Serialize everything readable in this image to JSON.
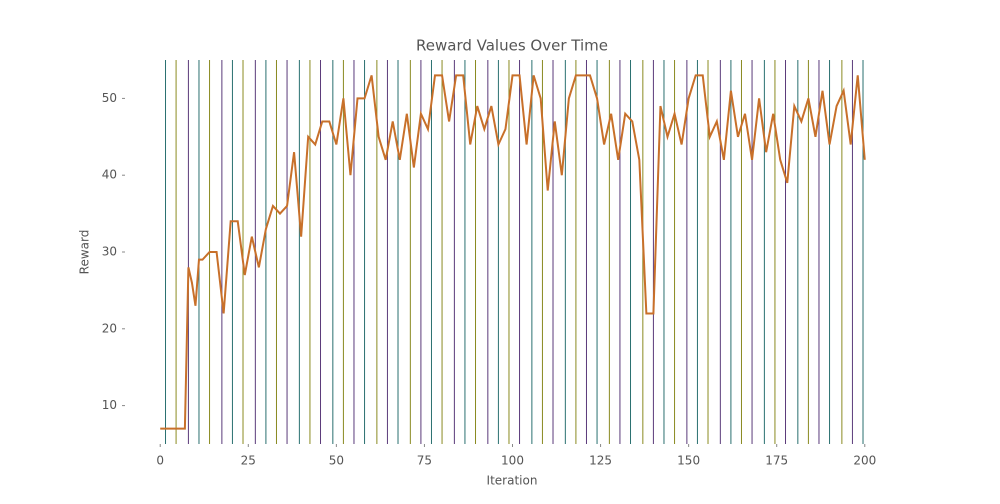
{
  "chart_data": {
    "type": "line",
    "title": "Reward Values Over Time",
    "x_label": "Iteration",
    "y_label": "Reward",
    "x": [
      0,
      2,
      4,
      6,
      7,
      8,
      9,
      10,
      11,
      12,
      14,
      16,
      18,
      20,
      22,
      24,
      26,
      28,
      30,
      32,
      34,
      36,
      38,
      40,
      42,
      44,
      46,
      48,
      50,
      52,
      54,
      56,
      58,
      60,
      62,
      64,
      66,
      68,
      70,
      72,
      74,
      76,
      78,
      80,
      82,
      84,
      86,
      88,
      90,
      92,
      94,
      96,
      98,
      100,
      102,
      104,
      106,
      108,
      110,
      112,
      114,
      116,
      118,
      120,
      122,
      124,
      126,
      128,
      130,
      132,
      134,
      136,
      138,
      140,
      142,
      144,
      146,
      148,
      150,
      152,
      154,
      156,
      158,
      160,
      162,
      164,
      166,
      168,
      170,
      172,
      174,
      176,
      178,
      180,
      182,
      184,
      186,
      188,
      190,
      192,
      194,
      196,
      198,
      200
    ],
    "series": [
      {
        "name": "Reward",
        "color": "#c8702a",
        "values": [
          7,
          7,
          7,
          7,
          7,
          28,
          26,
          23,
          29,
          29,
          30,
          30,
          22,
          34,
          34,
          27,
          32,
          28,
          33,
          36,
          35,
          36,
          43,
          32,
          45,
          44,
          47,
          47,
          44,
          50,
          40,
          50,
          50,
          53,
          45,
          42,
          47,
          42,
          48,
          41,
          48,
          46,
          53,
          53,
          47,
          53,
          53,
          44,
          49,
          46,
          49,
          44,
          46,
          53,
          53,
          44,
          53,
          50,
          38,
          47,
          40,
          50,
          53,
          53,
          53,
          50,
          44,
          48,
          42,
          48,
          47,
          42,
          22,
          22,
          49,
          45,
          48,
          44,
          50,
          53,
          53,
          45,
          47,
          42,
          51,
          45,
          48,
          42,
          50,
          43,
          48,
          42,
          39,
          49,
          47,
          50,
          45,
          51,
          44,
          49,
          51,
          44,
          53,
          42
        ]
      }
    ],
    "vlines": [
      1.5,
      4.5,
      8,
      11,
      14,
      17.5,
      20.5,
      23.5,
      27,
      30,
      33,
      36,
      39.5,
      42.5,
      45.5,
      49,
      52,
      55,
      58,
      61.5,
      64.5,
      67.5,
      71,
      74,
      77,
      80,
      83.5,
      86.5,
      89.5,
      93,
      96,
      99,
      102,
      105.5,
      108.5,
      111.5,
      115,
      118,
      121,
      124,
      127.5,
      130.5,
      133.5,
      137,
      140,
      143,
      146,
      149.5,
      152.5,
      155.5,
      159,
      162,
      165,
      168,
      171.5,
      174.5,
      177.5,
      181,
      184,
      187,
      190,
      193.5,
      196.5,
      199.5
    ],
    "vline_colors": [
      "#2a7070",
      "#8a8a20",
      "#5a3a7a"
    ],
    "xlim": [
      -10,
      210
    ],
    "xticks": [
      0,
      25,
      50,
      75,
      100,
      125,
      150,
      175,
      200
    ],
    "ylim": [
      5,
      55
    ],
    "yticks": [
      10,
      20,
      30,
      40,
      50
    ]
  }
}
